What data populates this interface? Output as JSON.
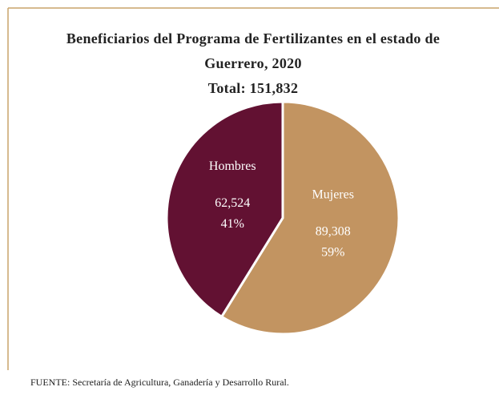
{
  "chart_data": {
    "type": "pie",
    "title": [
      "Beneficiarios del Programa de Fertilizantes en el estado de",
      "Guerrero, 2020"
    ],
    "subtitle": "Total: 151,832",
    "categories": [
      "Mujeres",
      "Hombres"
    ],
    "values": [
      89308,
      62524
    ],
    "value_labels": [
      "89,308",
      "62,524"
    ],
    "shares": [
      59,
      41
    ],
    "share_labels": [
      "59%",
      "41%"
    ],
    "colors": [
      "#c29461",
      "#621132"
    ],
    "source": "FUENTE: Secretaría de Agricultura,  Ganadería y Desarrollo Rural."
  }
}
